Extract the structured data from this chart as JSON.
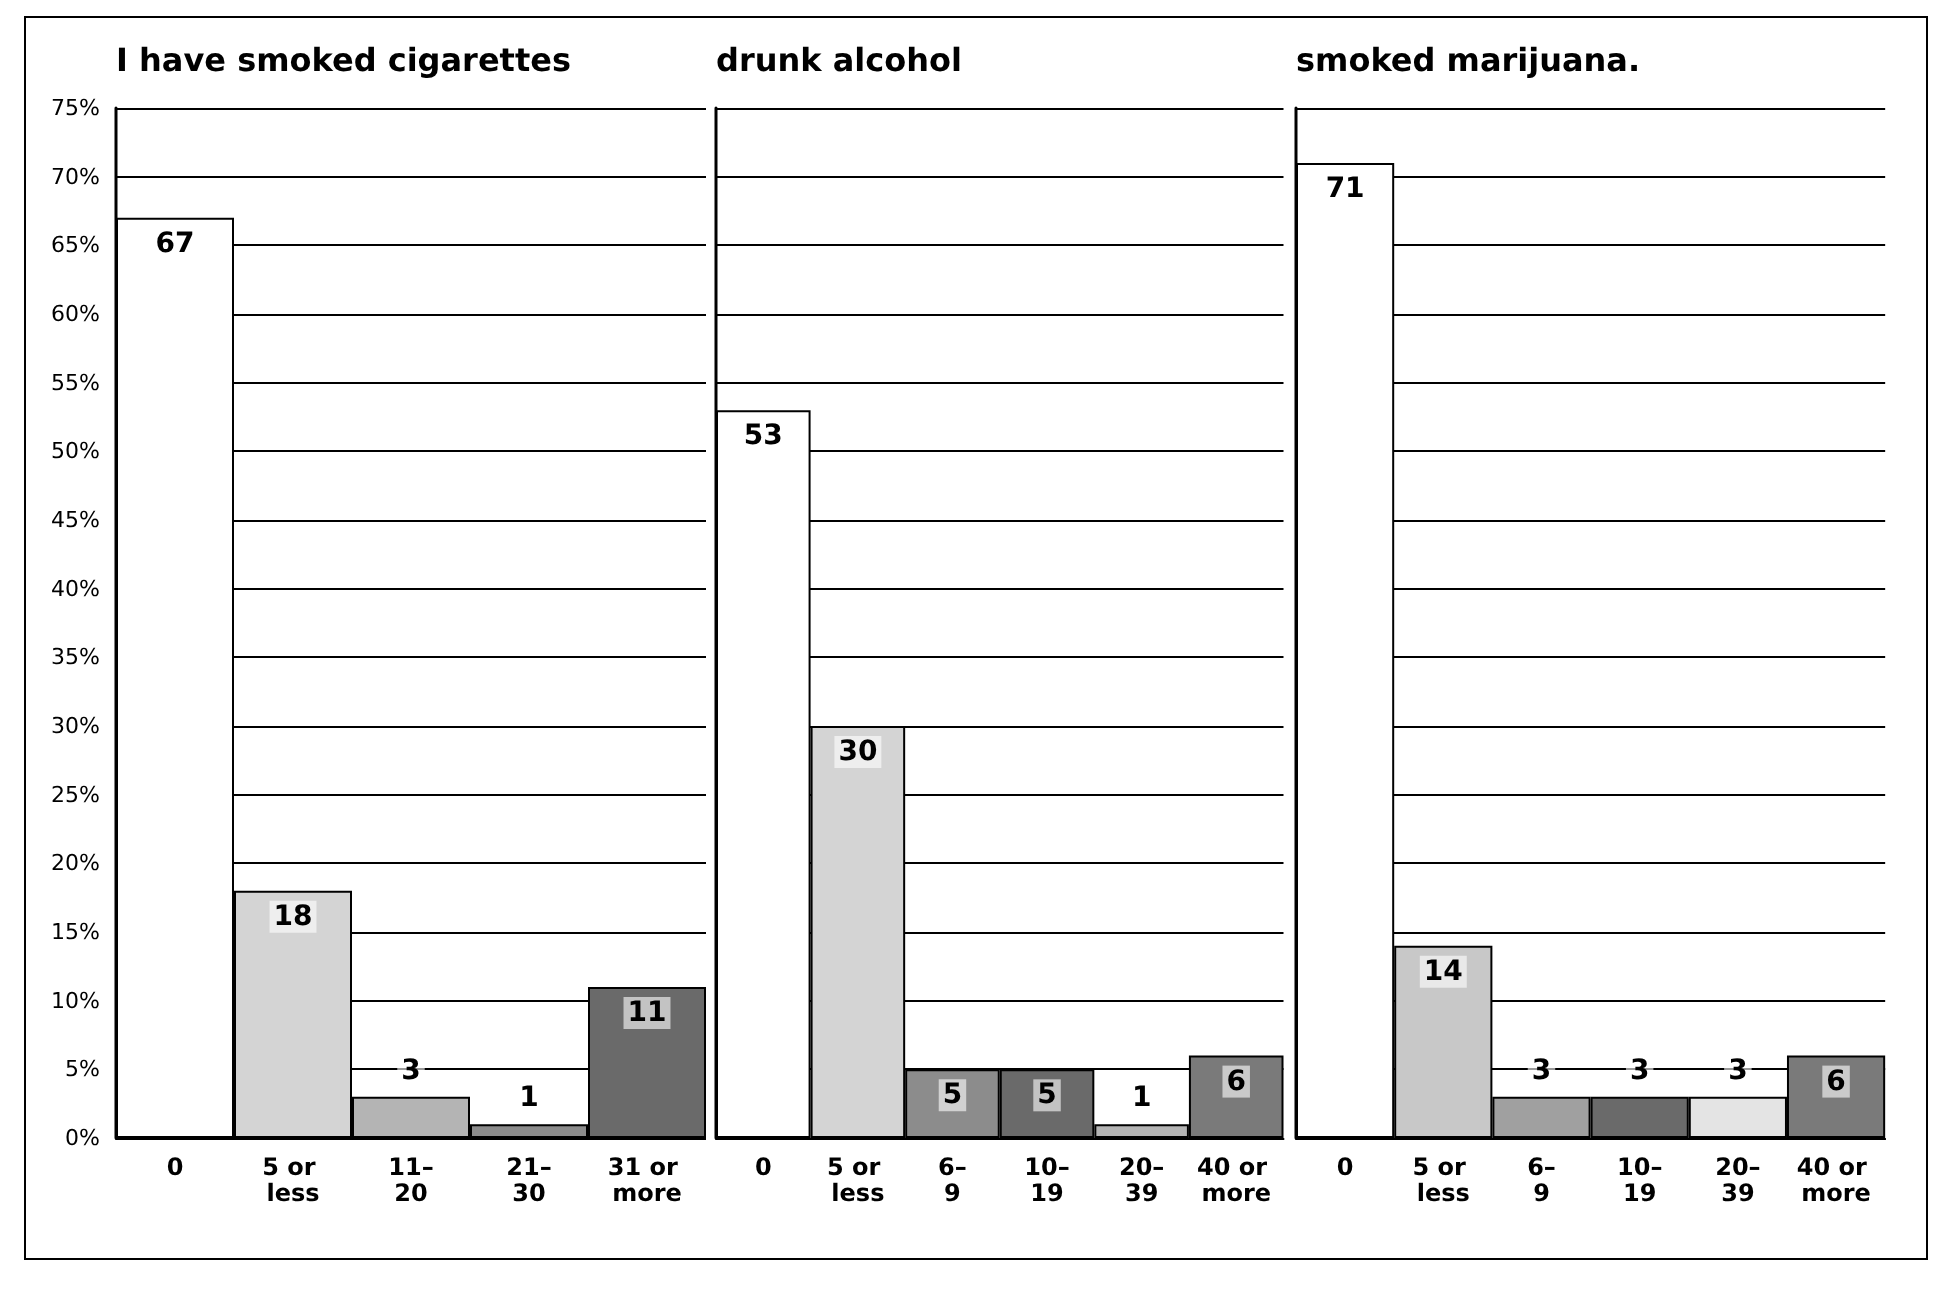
{
  "chart_data": [
    {
      "type": "bar",
      "title": "I have smoked cigarettes",
      "categories": [
        "0",
        "5 or less",
        "11–20",
        "21–30",
        "31 or more"
      ],
      "values": [
        67,
        18,
        3,
        1,
        11
      ],
      "colors": [
        "#ffffff",
        "#d4d4d4",
        "#b4b4b4",
        "#8c8c8c",
        "#6a6a6a"
      ],
      "data_labels": true,
      "grid": "y",
      "ylim": [
        0,
        75
      ],
      "yticks": [
        {
          "value": 0,
          "label": "0%"
        },
        {
          "value": 5,
          "label": "5%"
        },
        {
          "value": 10,
          "label": "10%"
        },
        {
          "value": 15,
          "label": "15%"
        },
        {
          "value": 20,
          "label": "20%"
        },
        {
          "value": 25,
          "label": "25%"
        },
        {
          "value": 30,
          "label": "30%"
        },
        {
          "value": 35,
          "label": "35%"
        },
        {
          "value": 40,
          "label": "40%"
        },
        {
          "value": 45,
          "label": "45%"
        },
        {
          "value": 50,
          "label": "50%"
        },
        {
          "value": 55,
          "label": "55%"
        },
        {
          "value": 60,
          "label": "60%"
        },
        {
          "value": 65,
          "label": "65%"
        },
        {
          "value": 70,
          "label": "70%"
        },
        {
          "value": 75,
          "label": "75%"
        }
      ]
    },
    {
      "type": "bar",
      "title": "drunk alcohol",
      "categories": [
        "0",
        "5 or less",
        "6–9",
        "10–19",
        "20–39",
        "40 or more"
      ],
      "values": [
        53,
        30,
        5,
        5,
        1,
        6
      ],
      "colors": [
        "#ffffff",
        "#d4d4d4",
        "#8c8c8c",
        "#6a6a6a",
        "#b4b4b4",
        "#7a7a7a"
      ],
      "data_labels": true,
      "grid": "y",
      "tick_labels": "x",
      "ylim": [
        0,
        75
      ],
      "yticks": [
        0,
        5,
        10,
        15,
        20,
        25,
        30,
        35,
        40,
        45,
        50,
        55,
        60,
        65,
        70,
        75
      ]
    },
    {
      "type": "bar",
      "title": "smoked marijuana.",
      "categories": [
        "0",
        "5 or less",
        "6–9",
        "10–19",
        "20–39",
        "40 or more"
      ],
      "values": [
        71,
        14,
        3,
        3,
        3,
        6
      ],
      "colors": [
        "#ffffff",
        "#c8c8c8",
        "#a0a0a0",
        "#6a6a6a",
        "#e4e4e4",
        "#7a7a7a"
      ],
      "data_labels": true,
      "grid": "y",
      "tick_labels": "x",
      "ylim": [
        0,
        75
      ],
      "yticks": [
        0,
        5,
        10,
        15,
        20,
        25,
        30,
        35,
        40,
        45,
        50,
        55,
        60,
        65,
        70,
        75
      ]
    }
  ]
}
